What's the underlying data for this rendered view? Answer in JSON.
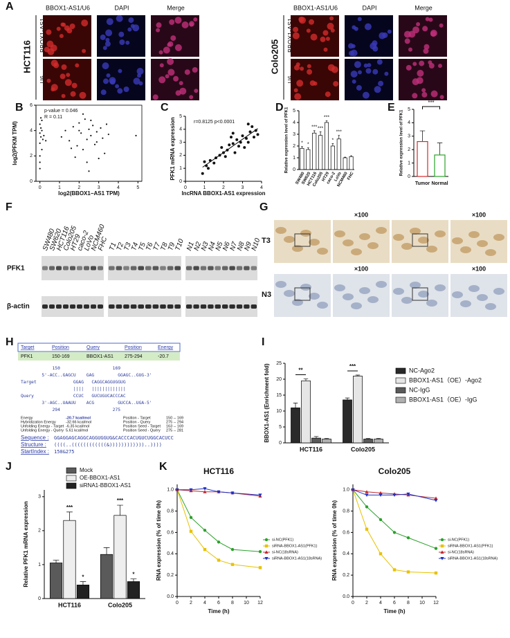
{
  "panel_labels": [
    "A",
    "B",
    "C",
    "D",
    "E",
    "F",
    "G",
    "H",
    "I",
    "J",
    "K"
  ],
  "panel_a": {
    "cell_lines": [
      "HCT116",
      "Colo205"
    ],
    "columns": [
      "BBOX1-AS1/U6",
      "DAPI",
      "Merge"
    ],
    "rows": [
      "BBOX1-AS1",
      "U6"
    ]
  },
  "panel_f": {
    "lanes": [
      [
        "SW480",
        "SW620",
        "HCT116",
        "Colo205",
        "HT29",
        "caco-2",
        "LoVo",
        "NCM460",
        "FHC"
      ],
      [
        "T1",
        "T2",
        "T3",
        "T4",
        "T5",
        "T6",
        "T7",
        "T8",
        "T9",
        "T10"
      ],
      [
        "N1",
        "N2",
        "N3",
        "N4",
        "N5",
        "N6",
        "N7",
        "N8",
        "N9",
        "N10"
      ]
    ],
    "proteins": [
      "PFK1",
      "β-actin"
    ]
  },
  "panel_g": {
    "magnification": "×100",
    "rows": [
      "T3",
      "N3"
    ]
  },
  "panel_h": {
    "header": [
      "Target",
      "Position",
      "Query",
      "Position",
      "Energy"
    ],
    "row": [
      "PFK1",
      "150-169",
      "BBOX1-AS1",
      "275-294",
      "-20.7"
    ],
    "alignment": [
      "            150                    169",
      "        5'-ACC..GAGCU    GAG         GGAGC..GUG-3'",
      "Target              GGAG   CAGGCAGGUGGUG",
      "                    ||||   |||||||||||||",
      "Query               CCUC   GUCUGUCACCCAC",
      "        3'-AGC..UAAUU    ACG         GUCCA..UGA-5'",
      "            294                    275"
    ],
    "energy": [
      [
        "Energy",
        "-20.7 kcal/mol",
        "Position - Target",
        "150 -- 169"
      ],
      [
        "Hybridization Energy",
        "-32.66 kcal/mol",
        "Position - Query",
        "275 -- 294"
      ],
      [
        "Unfolding Energy - Target",
        "-6.35 kcal/mol",
        "Position Seed - Target",
        "163 -- 169"
      ],
      [
        "Unfolding Energy - Query",
        "5.61 kcal/mol",
        "Position Seed - Query",
        "275 -- 281"
      ]
    ],
    "sequence": [
      [
        "Sequence  :",
        "GGAGGAGCAGGCAGGUGGUG&CACCCACUGUCUGGCACUCC"
      ],
      [
        "Structure :",
        "((((..((((((((((((&))))))))))))..))))"
      ],
      [
        "StartIndex :",
        "150&275"
      ]
    ]
  },
  "chart_data": [
    {
      "type": "scatter",
      "annotations": [
        "p-value = 0.046",
        "R = 0.11"
      ],
      "x_label": "log2(BBOX1−AS1 TPM)",
      "y_label": "log2(PFKM TPM)",
      "x": [
        0,
        0,
        0,
        0.05,
        0.1,
        0,
        0.05,
        0.1,
        0,
        0.15,
        0.05,
        0,
        0.1,
        0.2,
        0.3,
        1.1,
        1.3,
        1.5,
        1.7,
        1.9,
        2.0,
        2.1,
        2.2,
        2.3,
        2.4,
        2.5,
        2.6,
        2.7,
        2.8,
        2.9,
        3.0,
        3.1,
        3.2,
        3.3,
        3.5,
        2.2,
        2.4,
        2.6,
        1.8,
        2.0,
        2.9,
        3.4,
        4.9,
        2.5,
        1.6
      ],
      "values": [
        4.5,
        3.8,
        3.0,
        4.2,
        2.5,
        1.5,
        3.5,
        4.8,
        2.0,
        3.3,
        5.0,
        1.0,
        4.0,
        3.6,
        3.2,
        3.5,
        4.0,
        3.2,
        4.3,
        2.8,
        4.6,
        3.8,
        2.5,
        4.9,
        3.3,
        4.1,
        3.6,
        4.4,
        2.9,
        3.9,
        1.8,
        4.2,
        3.4,
        2.2,
        3.7,
        5.3,
        1.5,
        4.8,
        1.9,
        4.0,
        3.1,
        4.5,
        3.6,
        0.8,
        2.6
      ],
      "color": "#111111",
      "xlim": [
        -0.2,
        5.2
      ],
      "xticks": [
        0,
        1,
        2,
        3,
        4,
        5
      ],
      "ylim": [
        0,
        6
      ],
      "yticks": [
        0,
        2,
        4,
        6
      ]
    },
    {
      "type": "scatter",
      "annotations": [
        "r=0.8125 p<0.0001"
      ],
      "x_label": "lncRNA BBOX1-AS1 expression",
      "y_label": "PFK1 mRNA expression",
      "x": [
        0.9,
        1.0,
        1.1,
        1.2,
        1.3,
        1.5,
        1.6,
        1.8,
        1.9,
        2.0,
        2.1,
        2.2,
        2.3,
        2.4,
        2.5,
        2.5,
        2.6,
        2.7,
        2.8,
        2.9,
        3.0,
        3.1,
        3.2,
        3.3,
        3.3,
        3.4,
        3.5,
        3.6,
        3.7,
        3.8
      ],
      "values": [
        0.6,
        1.5,
        1.2,
        1.0,
        1.6,
        1.4,
        1.8,
        2.0,
        2.6,
        2.2,
        1.9,
        2.4,
        2.8,
        3.4,
        2.9,
        3.7,
        2.2,
        3.2,
        2.7,
        3.0,
        3.5,
        2.6,
        3.3,
        4.4,
        3.0,
        3.8,
        4.2,
        3.4,
        3.9,
        3.6
      ],
      "color": "#111111",
      "fit_line": true,
      "xlim": [
        0,
        4
      ],
      "xticks": [
        0,
        1,
        2,
        3,
        4
      ],
      "ylim": [
        0,
        5
      ],
      "yticks": [
        0,
        1,
        2,
        3,
        4,
        5
      ]
    },
    {
      "type": "bar",
      "y_label": "Relative expression level of PFK1",
      "categories": [
        "SW480",
        "SW620",
        "HCT116",
        "Colo205",
        "HT29",
        "caco-2",
        "LoVo",
        "NCM460",
        "FHC"
      ],
      "values": [
        1.8,
        1.7,
        3.1,
        2.9,
        4.0,
        2.0,
        2.6,
        1.0,
        1.1
      ],
      "errors": [
        0.15,
        0.15,
        0.2,
        0.3,
        0.15,
        0.2,
        0.3,
        0.05,
        0.08
      ],
      "annotations": [
        "*",
        "*",
        "***",
        "***",
        "***",
        "*",
        "***",
        null,
        null
      ],
      "color": "#ffffff",
      "ylim": [
        0,
        5
      ],
      "yticks": [
        0,
        1,
        2,
        3,
        4,
        5
      ]
    },
    {
      "type": "bar",
      "y_label": "Relative expression level of PFK1",
      "categories": [
        "Tumor",
        "Normal"
      ],
      "values": [
        2.6,
        1.6
      ],
      "errors": [
        0.8,
        0.9
      ],
      "colors": [
        "#d62728",
        "#2ca02c"
      ],
      "annotations": [
        "***"
      ],
      "color": "#ffffff",
      "ylim": [
        0,
        5
      ],
      "yticks": [
        0,
        1,
        2,
        3,
        4,
        5
      ]
    },
    {
      "type": "bar",
      "y_label": "BBOX1-AS1 (Enrichment fold)",
      "categories": [
        "HCT116",
        "Colo205"
      ],
      "annotations": [
        "**",
        "***"
      ],
      "series": [
        {
          "name": "NC-Ago2",
          "color": "#2a2a2a",
          "values": [
            11,
            13.5
          ],
          "errors": [
            1.5,
            0.6
          ]
        },
        {
          "name": "BBOX1-AS1（OE）-Ago2",
          "color": "#e6e6e6",
          "values": [
            19.5,
            21
          ],
          "errors": [
            0.6,
            0.3
          ]
        },
        {
          "name": "NC-IgG",
          "color": "#5a5a5a",
          "values": [
            1.5,
            1.2
          ],
          "errors": [
            0.5,
            0.2
          ]
        },
        {
          "name": "BBOX1-AS1（OE）-IgG",
          "color": "#b0b0b0",
          "values": [
            1.2,
            1.2
          ],
          "errors": [
            0.2,
            0.2
          ]
        }
      ],
      "ylim": [
        0,
        25
      ],
      "yticks": [
        0,
        5,
        10,
        15,
        20,
        25
      ]
    },
    {
      "type": "bar",
      "y_label": "Relative PFK1 mRNA expression",
      "categories": [
        "HCT116",
        "Colo205"
      ],
      "series": [
        {
          "name": "Mock",
          "color": "#5a5a5a",
          "values": [
            1.05,
            1.3
          ],
          "errors": [
            0.08,
            0.2
          ],
          "annotations": [
            null,
            null
          ]
        },
        {
          "name": "OE-BBOX1-AS1",
          "color": "#eeeeee",
          "values": [
            2.3,
            2.45
          ],
          "errors": [
            0.25,
            0.3
          ],
          "annotations": [
            "***",
            "***"
          ]
        },
        {
          "name": "siRNA1-BBOX1-AS1",
          "color": "#222222",
          "values": [
            0.4,
            0.5
          ],
          "errors": [
            0.1,
            0.08
          ],
          "annotations": [
            "*",
            "*"
          ]
        }
      ],
      "ylim": [
        0,
        3.2
      ],
      "yticks": [
        0,
        1,
        2,
        3
      ]
    },
    {
      "type": "line",
      "title": "HCT116",
      "x_label": "Time (h)",
      "y_label": "RNA expression (% of time 0h)",
      "x": [
        0,
        2,
        4,
        6,
        8,
        12
      ],
      "series": [
        {
          "name": "si-NC(PFK1)",
          "color": "#2ca02c",
          "values": [
            1,
            0.74,
            0.62,
            0.51,
            0.44,
            0.42
          ]
        },
        {
          "name": "siRNA-BBOX1-AS1(PFK1)",
          "color": "#e8c200",
          "values": [
            1,
            0.61,
            0.44,
            0.34,
            0.3,
            0.27
          ]
        },
        {
          "name": "si-NC(18sRNA)",
          "color": "#c0282d",
          "values": [
            1,
            0.99,
            0.98,
            0.98,
            0.97,
            0.94
          ]
        },
        {
          "name": "siRNA-BBOX1-AS1(18sRNA)",
          "color": "#2030c0",
          "values": [
            1,
            1,
            1.01,
            0.98,
            0.97,
            0.95
          ]
        }
      ],
      "xlim": [
        0,
        12
      ],
      "xticks": [
        0,
        2,
        4,
        6,
        8,
        10,
        12
      ],
      "ylim": [
        0,
        1.05
      ],
      "yticks": [
        {
          "value": 0,
          "label": "0.0"
        },
        {
          "value": 0.2,
          "label": "0.2"
        },
        {
          "value": 0.4,
          "label": "0.4"
        },
        {
          "value": 0.6,
          "label": "0.6"
        },
        {
          "value": 0.8,
          "label": "0.8"
        },
        {
          "value": 1,
          "label": "1.0"
        }
      ]
    },
    {
      "type": "line",
      "title": "Colo205",
      "x_label": "Time (h)",
      "y_label": "RNA expression (% of time 0h)",
      "x": [
        0,
        2,
        4,
        6,
        8,
        12
      ],
      "series": [
        {
          "name": "si-NC(PFK1)",
          "color": "#2ca02c",
          "values": [
            1,
            0.84,
            0.72,
            0.6,
            0.55,
            0.45
          ]
        },
        {
          "name": "siRNA-BBOX1-AS1(PFK1)",
          "color": "#e8c200",
          "values": [
            1,
            0.63,
            0.4,
            0.25,
            0.23,
            0.22
          ]
        },
        {
          "name": "si-NC(18sRNA)",
          "color": "#c0282d",
          "values": [
            1,
            0.98,
            0.97,
            0.96,
            0.95,
            0.92
          ]
        },
        {
          "name": "siRNA-BBOX1-AS1(18sRNA)",
          "color": "#2030c0",
          "values": [
            1,
            0.95,
            0.95,
            0.95,
            0.96,
            0.9
          ]
        }
      ],
      "xlim": [
        0,
        12
      ],
      "xticks": [
        0,
        2,
        4,
        6,
        8,
        10,
        12
      ],
      "ylim": [
        0,
        1.05
      ],
      "yticks": [
        {
          "value": 0,
          "label": "0.0"
        },
        {
          "value": 0.2,
          "label": "0.2"
        },
        {
          "value": 0.4,
          "label": "0.4"
        },
        {
          "value": 0.6,
          "label": "0.6"
        },
        {
          "value": 0.8,
          "label": "0.8"
        },
        {
          "value": 1,
          "label": "1.0"
        }
      ]
    }
  ]
}
